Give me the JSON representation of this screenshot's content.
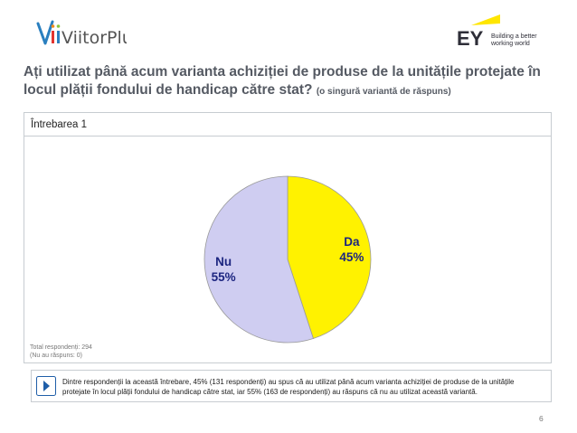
{
  "header": {
    "logo_left_text": "ViitorPlus",
    "logo_right_brand": "EY",
    "logo_right_tagline_1": "Building a better",
    "logo_right_tagline_2": "working world"
  },
  "title": {
    "main": "Ați utilizat până acum varianta achiziției de produse de la unitățile protejate în locul plății fondului de handicap către stat?",
    "subtitle": "(o singură variantă de răspuns)"
  },
  "chart_box": {
    "header": "Întrebarea 1",
    "note_line1": "Total respondenți: 294",
    "note_line2": "(Nu au răspuns: 0)"
  },
  "chart_data": {
    "type": "pie",
    "title": "",
    "slices": [
      {
        "label": "Da",
        "value": 45,
        "display": "45%",
        "color": "#fff200"
      },
      {
        "label": "Nu",
        "value": 55,
        "display": "55%",
        "color": "#cfcdf1"
      }
    ]
  },
  "callout": {
    "text": "Dintre respondenții la această întrebare, 45% (131 respondenți) au spus că au utilizat până acum varianta achiziției de produse de la unitățile protejate în locul plății fondului de handicap către stat, iar 55% (163 de respondenți) au răspuns că nu au utilizat această variantă."
  },
  "footer": {
    "page_number": "6"
  }
}
